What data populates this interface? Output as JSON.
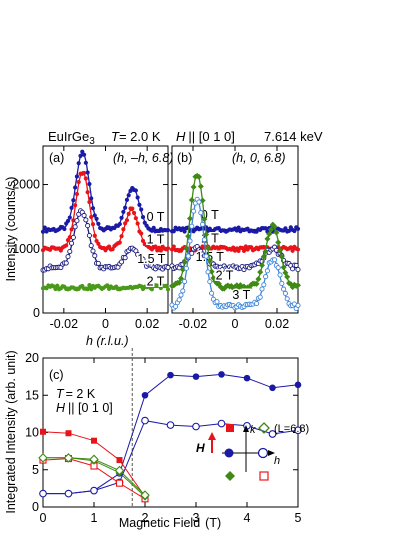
{
  "header": {
    "compound": "EuIrGe",
    "compound_sub": "3",
    "temp_T": "T",
    "temp_val": "= 2.0 K",
    "field_H": "H",
    "field_dir": "|| [0 1 0]",
    "energy": "7.614 keV"
  },
  "colors": {
    "blue": "#1a1aa6",
    "red": "#e8141a",
    "green": "#4a9a1a",
    "darkgreen": "#3e8a14",
    "lightblue": "#3f86d9",
    "darkblue": "#1a1a80"
  },
  "chart_data": [
    {
      "panel": "(a)",
      "type": "scatter",
      "annotation": "(h, –h, 6.8)",
      "xlabel": "h (r.l.u.)",
      "ylabel": "Intensity (counts/s)",
      "xlim": [
        -0.03,
        0.03
      ],
      "ylim": [
        0,
        2600
      ],
      "xticks": [
        "-0.02",
        "0",
        "0.02"
      ],
      "yticks": [
        "0",
        "1000",
        "2000"
      ],
      "series": [
        {
          "name": "0 T",
          "color": "#1a1aa6",
          "offset": 1300,
          "background": 1300,
          "peaks": [
            {
              "center": -0.011,
              "amp": 1200,
              "width": 0.0032
            },
            {
              "center": 0.013,
              "amp": 660,
              "width": 0.0032
            }
          ],
          "label_x": 0.024,
          "label_y": 1430
        },
        {
          "name": "1 T",
          "color": "#e8141a",
          "offset": 1000,
          "background": 1000,
          "peaks": [
            {
              "center": -0.011,
              "amp": 1200,
              "width": 0.0032
            },
            {
              "center": 0.0125,
              "amp": 600,
              "width": 0.0032
            }
          ],
          "label_x": 0.024,
          "label_y": 1080
        },
        {
          "name": "1.5 T",
          "color": "#1a1a80",
          "offset": 700,
          "background": 700,
          "open": true,
          "peaks": [
            {
              "center": -0.0115,
              "amp": 900,
              "width": 0.0035
            },
            {
              "center": 0.013,
              "amp": 300,
              "width": 0.0035
            }
          ],
          "label_x": 0.022,
          "label_y": 780
        },
        {
          "name": "2 T",
          "color": "#4a9a1a",
          "offset": 400,
          "background": 400,
          "peaks": [],
          "label_x": 0.024,
          "label_y": 430
        }
      ]
    },
    {
      "panel": "(b)",
      "type": "scatter",
      "annotation": "(h, 0, 6.8)",
      "xlabel": "",
      "xlim": [
        -0.03,
        0.03
      ],
      "ylim": [
        0,
        2600
      ],
      "xticks": [
        "-0.02",
        "0",
        "0.02"
      ],
      "series": [
        {
          "name": "0 T",
          "color": "#1a1aa6",
          "background": 1300,
          "peaks": [],
          "label_x": -0.012,
          "label_y": 1460
        },
        {
          "name": "1 T",
          "color": "#e8141a",
          "background": 1000,
          "peaks": [],
          "label_x": -0.012,
          "label_y": 1100
        },
        {
          "name": "1.5 T",
          "color": "#1a1a80",
          "background": 700,
          "open": true,
          "peaks": [
            {
              "center": -0.018,
              "amp": 300,
              "width": 0.004
            },
            {
              "center": 0.018,
              "amp": 300,
              "width": 0.004
            }
          ],
          "label_x": -0.012,
          "label_y": 810
        },
        {
          "name": "2 T",
          "color": "#3e8a14",
          "background": 400,
          "diamond": true,
          "peaks": [
            {
              "center": -0.018,
              "amp": 1750,
              "width": 0.0035
            },
            {
              "center": 0.018,
              "amp": 950,
              "width": 0.0035
            }
          ],
          "label_x": -0.005,
          "label_y": 520
        },
        {
          "name": "3 T",
          "color": "#3f86d9",
          "background": 100,
          "open": true,
          "peaks": [
            {
              "center": -0.018,
              "amp": 1650,
              "width": 0.0035
            },
            {
              "center": 0.018,
              "amp": 750,
              "width": 0.0035
            }
          ],
          "label_x": 0.003,
          "label_y": 220
        }
      ]
    },
    {
      "panel": "(c)",
      "type": "line",
      "xlabel": "Magnetic Field",
      "xunit": "(T)",
      "ylabel": "Integrated Intensity  (arb. unit)",
      "xlim": [
        0,
        5
      ],
      "ylim": [
        0,
        20
      ],
      "xticks": [
        "0",
        "1",
        "2",
        "3",
        "4",
        "5"
      ],
      "yticks": [
        "0",
        "5",
        "10",
        "15",
        "20"
      ],
      "vline_x": 1.75,
      "text_T": "T",
      "text_Tval": "= 2 K",
      "text_H": "H",
      "text_Hval": "|| [0 1 0]",
      "inset_L": "(L=6.8)",
      "inset_H": "H",
      "inset_k": "k",
      "inset_h": "h",
      "series": [
        {
          "marker": "filled-circle",
          "color": "#1a1aa6",
          "x": [
            0,
            0.5,
            1,
            1.5,
            2,
            2.5,
            3,
            3.5,
            4,
            4.5,
            5
          ],
          "y": [
            1.8,
            1.8,
            2.2,
            4.5,
            15.0,
            17.7,
            17.5,
            17.8,
            17.3,
            16.0,
            16.4
          ]
        },
        {
          "marker": "open-circle",
          "color": "#1a1aa6",
          "x": [
            0,
            0.5,
            1,
            1.5,
            2,
            2.5,
            3,
            3.5,
            4,
            4.5,
            5
          ],
          "y": [
            1.8,
            1.8,
            2.2,
            3.3,
            11.6,
            11.0,
            10.8,
            11.2,
            10.9,
            9.8,
            10.3
          ]
        },
        {
          "marker": "filled-square",
          "color": "#e8141a",
          "x": [
            0,
            0.5,
            1,
            1.5,
            2
          ],
          "y": [
            10.1,
            9.9,
            8.9,
            6.3,
            1.4
          ]
        },
        {
          "marker": "open-square",
          "color": "#e8141a",
          "x": [
            0,
            0.5,
            1,
            1.5,
            2
          ],
          "y": [
            6.3,
            6.5,
            5.5,
            3.2,
            1.1
          ]
        },
        {
          "marker": "filled-diamond",
          "color": "#3e8a14",
          "x": [
            0,
            0.5,
            1,
            1.5,
            2
          ],
          "y": [
            6.6,
            6.6,
            6.2,
            4.6,
            1.4
          ]
        },
        {
          "marker": "open-diamond",
          "color": "#3e8a14",
          "x": [
            0,
            0.5,
            1,
            1.5,
            2
          ],
          "y": [
            6.6,
            6.6,
            6.4,
            4.9,
            1.6
          ]
        }
      ]
    }
  ]
}
